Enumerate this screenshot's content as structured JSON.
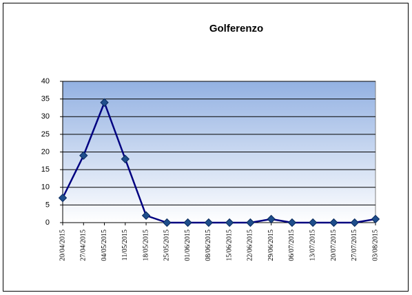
{
  "chart_data": {
    "type": "line",
    "title": "Golferenzo",
    "categories": [
      "20/04/2015",
      "27/04/2015",
      "04/05/2015",
      "11/05/2015",
      "18/05/2015",
      "25/05/2015",
      "01/06/2015",
      "08/06/2015",
      "15/06/2015",
      "22/06/2015",
      "29/06/2015",
      "06/07/2015",
      "13/07/2015",
      "20/07/2015",
      "27/07/2015",
      "03/08/2015"
    ],
    "values": [
      7,
      19,
      34,
      18,
      2,
      0,
      0,
      0,
      0,
      0,
      1,
      0,
      0,
      0,
      0,
      1
    ],
    "color": "#000080",
    "ylim": [
      0,
      40
    ],
    "yticks": [
      0,
      5,
      10,
      15,
      20,
      25,
      30,
      35,
      40
    ],
    "grid": true
  }
}
